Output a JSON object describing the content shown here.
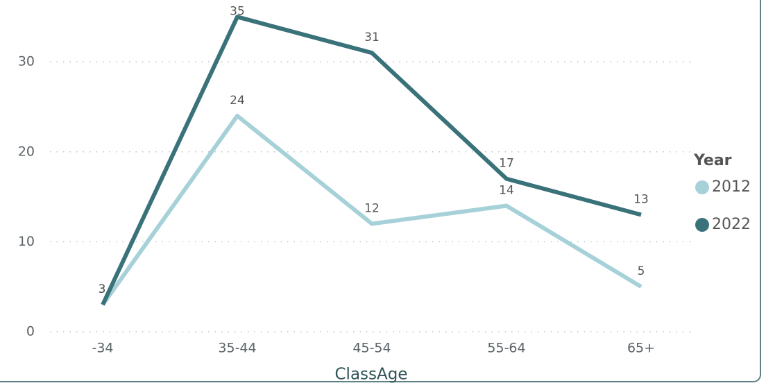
{
  "chart_data": {
    "type": "line",
    "x_label": "ClassAge",
    "legend_title": "Year",
    "categories": [
      "-34",
      "35-44",
      "45-54",
      "55-64",
      "65+"
    ],
    "series": [
      {
        "name": "2012",
        "color": "#a6d1d8",
        "values": [
          3,
          24,
          12,
          14,
          5
        ]
      },
      {
        "name": "2022",
        "color": "#3a7279",
        "values": [
          3,
          35,
          31,
          17,
          13
        ]
      }
    ],
    "ylim": [
      0,
      36.8
    ],
    "yticks": [
      0,
      10,
      20,
      30
    ],
    "grid": true,
    "legend": "right"
  }
}
